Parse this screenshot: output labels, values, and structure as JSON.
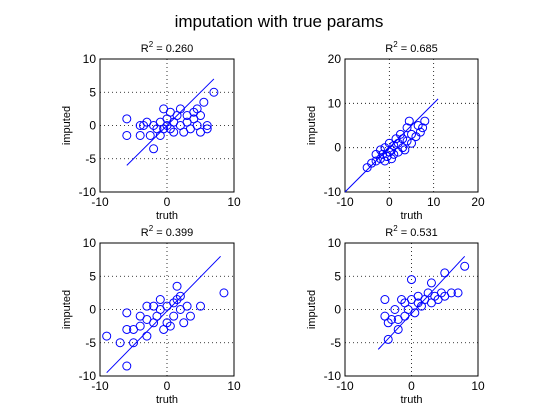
{
  "figure": {
    "title": "imputation with true params"
  },
  "chart_data": [
    {
      "type": "scatter",
      "title_prefix": "R",
      "title_sup": "2",
      "title_value": " = 0.260",
      "xlabel": "truth",
      "ylabel": "imputed",
      "xlim": [
        -10,
        10
      ],
      "ylim": [
        -10,
        10
      ],
      "xticks": [
        -10,
        0,
        10
      ],
      "yticks": [
        -10,
        -5,
        0,
        5,
        10
      ],
      "grid": true,
      "marker": "circle",
      "color": "#0000ff",
      "fit_line": {
        "x": [
          -6,
          7
        ],
        "y": [
          -6,
          7
        ]
      },
      "points": [
        {
          "x": -6,
          "y": 1
        },
        {
          "x": -6,
          "y": -1.5
        },
        {
          "x": -4,
          "y": 0
        },
        {
          "x": -4,
          "y": -1.5
        },
        {
          "x": -3.5,
          "y": 0
        },
        {
          "x": -3,
          "y": 0.5
        },
        {
          "x": -2.5,
          "y": -1.5
        },
        {
          "x": -2,
          "y": -3.5
        },
        {
          "x": -2,
          "y": 0
        },
        {
          "x": -1.5,
          "y": -0.5
        },
        {
          "x": -1,
          "y": 0.5
        },
        {
          "x": -1,
          "y": -1.5
        },
        {
          "x": -0.5,
          "y": 2.5
        },
        {
          "x": -0.5,
          "y": -0.5
        },
        {
          "x": 0,
          "y": 0
        },
        {
          "x": 0,
          "y": 1
        },
        {
          "x": 0.5,
          "y": -0.5
        },
        {
          "x": 0.5,
          "y": 2
        },
        {
          "x": 1,
          "y": 0.5
        },
        {
          "x": 1,
          "y": -1
        },
        {
          "x": 1.5,
          "y": 1.5
        },
        {
          "x": 2,
          "y": 0
        },
        {
          "x": 2,
          "y": 2.5
        },
        {
          "x": 2.5,
          "y": -1
        },
        {
          "x": 3,
          "y": 0.5
        },
        {
          "x": 3,
          "y": 1.5
        },
        {
          "x": 3.5,
          "y": -0.5
        },
        {
          "x": 4,
          "y": 1
        },
        {
          "x": 4,
          "y": 2
        },
        {
          "x": 4.5,
          "y": 0
        },
        {
          "x": 4.5,
          "y": 2.5
        },
        {
          "x": 5,
          "y": -1
        },
        {
          "x": 5,
          "y": 1.5
        },
        {
          "x": 5.5,
          "y": 3.5
        },
        {
          "x": 6,
          "y": 0
        },
        {
          "x": 6,
          "y": -0.5
        },
        {
          "x": 7,
          "y": 5
        }
      ]
    },
    {
      "type": "scatter",
      "title_prefix": "R",
      "title_sup": "2",
      "title_value": " = 0.685",
      "xlabel": "truth",
      "ylabel": "imputed",
      "xlim": [
        -10,
        20
      ],
      "ylim": [
        -10,
        20
      ],
      "xticks": [
        -10,
        0,
        10,
        20
      ],
      "yticks": [
        -10,
        0,
        10,
        20
      ],
      "grid": true,
      "marker": "circle",
      "color": "#0000ff",
      "fit_line": {
        "x": [
          -10,
          11
        ],
        "y": [
          -10,
          11
        ]
      },
      "points": [
        {
          "x": -5,
          "y": -4.5
        },
        {
          "x": -4,
          "y": -3.5
        },
        {
          "x": -3,
          "y": -1.5
        },
        {
          "x": -3,
          "y": -3
        },
        {
          "x": -2,
          "y": -2.5
        },
        {
          "x": -2,
          "y": -0.5
        },
        {
          "x": -1.5,
          "y": -1.5
        },
        {
          "x": -1,
          "y": -3
        },
        {
          "x": -1,
          "y": 0
        },
        {
          "x": -0.5,
          "y": -2
        },
        {
          "x": 0,
          "y": -1
        },
        {
          "x": 0,
          "y": 1
        },
        {
          "x": 0.5,
          "y": -2.5
        },
        {
          "x": 0.5,
          "y": -0.5
        },
        {
          "x": 1,
          "y": 0.5
        },
        {
          "x": 1,
          "y": -1.5
        },
        {
          "x": 1.5,
          "y": 2
        },
        {
          "x": 2,
          "y": -1
        },
        {
          "x": 2,
          "y": 1
        },
        {
          "x": 2.5,
          "y": 3
        },
        {
          "x": 3,
          "y": 0
        },
        {
          "x": 3,
          "y": 2
        },
        {
          "x": 3.5,
          "y": -0.5
        },
        {
          "x": 4,
          "y": 1.5
        },
        {
          "x": 4,
          "y": 4.5
        },
        {
          "x": 4.5,
          "y": 6
        },
        {
          "x": 5,
          "y": 3
        },
        {
          "x": 5,
          "y": 1
        },
        {
          "x": 6,
          "y": 2.5
        },
        {
          "x": 6.5,
          "y": 5
        },
        {
          "x": 7,
          "y": 3.5
        },
        {
          "x": 7.5,
          "y": 4.5
        },
        {
          "x": 8,
          "y": 6
        }
      ]
    },
    {
      "type": "scatter",
      "title_prefix": "R",
      "title_sup": "2",
      "title_value": " = 0.399",
      "xlabel": "truth",
      "ylabel": "imputed",
      "xlim": [
        -10,
        10
      ],
      "ylim": [
        -10,
        10
      ],
      "xticks": [
        -10,
        0,
        10
      ],
      "yticks": [
        -10,
        -5,
        0,
        5,
        10
      ],
      "grid": true,
      "marker": "circle",
      "color": "#0000ff",
      "fit_line": {
        "x": [
          -9,
          8
        ],
        "y": [
          -9.5,
          8
        ]
      },
      "points": [
        {
          "x": -9,
          "y": -4
        },
        {
          "x": -7,
          "y": -5
        },
        {
          "x": -6,
          "y": -0.5
        },
        {
          "x": -6,
          "y": -3
        },
        {
          "x": -6,
          "y": -8.5
        },
        {
          "x": -5,
          "y": -5
        },
        {
          "x": -5,
          "y": -3
        },
        {
          "x": -4,
          "y": -2.5
        },
        {
          "x": -4,
          "y": -1
        },
        {
          "x": -3,
          "y": 0.5
        },
        {
          "x": -3,
          "y": -1.5
        },
        {
          "x": -3,
          "y": -4
        },
        {
          "x": -2,
          "y": 0.5
        },
        {
          "x": -2,
          "y": -2
        },
        {
          "x": -1.5,
          "y": -1
        },
        {
          "x": -1,
          "y": 0
        },
        {
          "x": -1,
          "y": 1.5
        },
        {
          "x": -0.5,
          "y": -3
        },
        {
          "x": 0,
          "y": -2
        },
        {
          "x": 0,
          "y": 0.5
        },
        {
          "x": 0.5,
          "y": -2.5
        },
        {
          "x": 1,
          "y": 1
        },
        {
          "x": 1,
          "y": -1
        },
        {
          "x": 1.5,
          "y": 1.5
        },
        {
          "x": 1.5,
          "y": 3.5
        },
        {
          "x": 2,
          "y": 2
        },
        {
          "x": 2,
          "y": 0
        },
        {
          "x": 2.5,
          "y": -2
        },
        {
          "x": 3,
          "y": 0.5
        },
        {
          "x": 3.5,
          "y": -1
        },
        {
          "x": 5,
          "y": 0.5
        },
        {
          "x": 8.5,
          "y": 2.5
        }
      ]
    },
    {
      "type": "scatter",
      "title_prefix": "R",
      "title_sup": "2",
      "title_value": " = 0.531",
      "xlabel": "truth",
      "ylabel": "imputed",
      "xlim": [
        -10,
        10
      ],
      "ylim": [
        -10,
        10
      ],
      "xticks": [
        -10,
        0,
        10
      ],
      "yticks": [
        -10,
        -5,
        0,
        5,
        10
      ],
      "grid": true,
      "marker": "circle",
      "color": "#0000ff",
      "fit_line": {
        "x": [
          -5,
          8
        ],
        "y": [
          -6,
          8
        ]
      },
      "points": [
        {
          "x": -4,
          "y": 1.5
        },
        {
          "x": -4,
          "y": -1
        },
        {
          "x": -3.5,
          "y": -2
        },
        {
          "x": -3.5,
          "y": -4.5
        },
        {
          "x": -3,
          "y": -1.5
        },
        {
          "x": -2.5,
          "y": 0
        },
        {
          "x": -2,
          "y": -1.5
        },
        {
          "x": -2,
          "y": -3
        },
        {
          "x": -1.5,
          "y": 1.5
        },
        {
          "x": -1,
          "y": -1
        },
        {
          "x": -1,
          "y": 1
        },
        {
          "x": -0.5,
          "y": 0
        },
        {
          "x": 0,
          "y": 4.5
        },
        {
          "x": 0,
          "y": 1.5
        },
        {
          "x": 0.5,
          "y": -0.5
        },
        {
          "x": 1,
          "y": 1
        },
        {
          "x": 1,
          "y": 2
        },
        {
          "x": 1.5,
          "y": 0.5
        },
        {
          "x": 2,
          "y": 1.5
        },
        {
          "x": 2.5,
          "y": 2.5
        },
        {
          "x": 3,
          "y": 1
        },
        {
          "x": 3,
          "y": 4
        },
        {
          "x": 3.5,
          "y": 2
        },
        {
          "x": 4,
          "y": 1.5
        },
        {
          "x": 4.5,
          "y": 2.5
        },
        {
          "x": 5,
          "y": 2
        },
        {
          "x": 5,
          "y": 5.5
        },
        {
          "x": 6,
          "y": 2.5
        },
        {
          "x": 7,
          "y": 2.5
        },
        {
          "x": 8,
          "y": 6.5
        }
      ]
    }
  ]
}
